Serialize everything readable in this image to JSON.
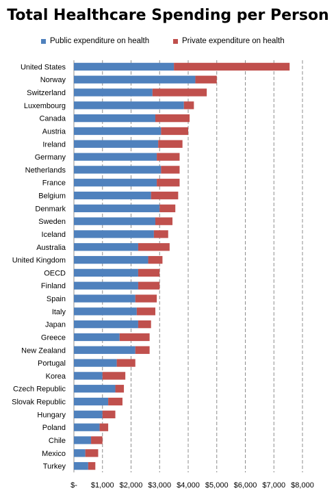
{
  "chart_data": {
    "type": "bar",
    "orientation": "horizontal",
    "stacked": true,
    "title": "Total Healthcare Spending per Person",
    "xlabel": "",
    "ylabel": "",
    "xlim": [
      0,
      8000
    ],
    "xticks": [
      0,
      1000,
      2000,
      3000,
      4000,
      5000,
      6000,
      7000,
      8000
    ],
    "xtick_labels": [
      "$-",
      "$1,000",
      "$2,000",
      "$3,000",
      "$4,000",
      "$5,000",
      "$6,000",
      "$7,000",
      "$8,000"
    ],
    "grid": "vertical dashed",
    "legend_position": "top",
    "categories": [
      "United States",
      "Norway",
      "Switzerland",
      "Luxembourg",
      "Canada",
      "Austria",
      "Ireland",
      "Germany",
      "Netherlands",
      "France",
      "Belgium",
      "Denmark",
      "Sweden",
      "Iceland",
      "Australia",
      "United Kingdom",
      "OECD",
      "Finland",
      "Spain",
      "Italy",
      "Japan",
      "Greece",
      "New Zealand",
      "Portugal",
      "Korea",
      "Czech Republic",
      "Slovak Republic",
      "Hungary",
      "Poland",
      "Chile",
      "Mexico",
      "Turkey"
    ],
    "series": [
      {
        "name": "Public expenditure on health",
        "color": "#4F81BD",
        "values": [
          3500,
          4250,
          2750,
          3850,
          2850,
          3050,
          2950,
          2900,
          3050,
          2900,
          2700,
          3000,
          2850,
          2800,
          2250,
          2600,
          2250,
          2250,
          2150,
          2200,
          2250,
          1600,
          2150,
          1500,
          1000,
          1450,
          1200,
          1000,
          900,
          600,
          400,
          500
        ]
      },
      {
        "name": "Private expenditure on health",
        "color": "#C0504D",
        "values": [
          4050,
          750,
          1900,
          350,
          1200,
          950,
          850,
          800,
          650,
          800,
          950,
          550,
          600,
          500,
          1100,
          500,
          750,
          750,
          750,
          650,
          450,
          1050,
          500,
          650,
          800,
          300,
          500,
          450,
          300,
          400,
          450,
          250
        ]
      }
    ]
  }
}
